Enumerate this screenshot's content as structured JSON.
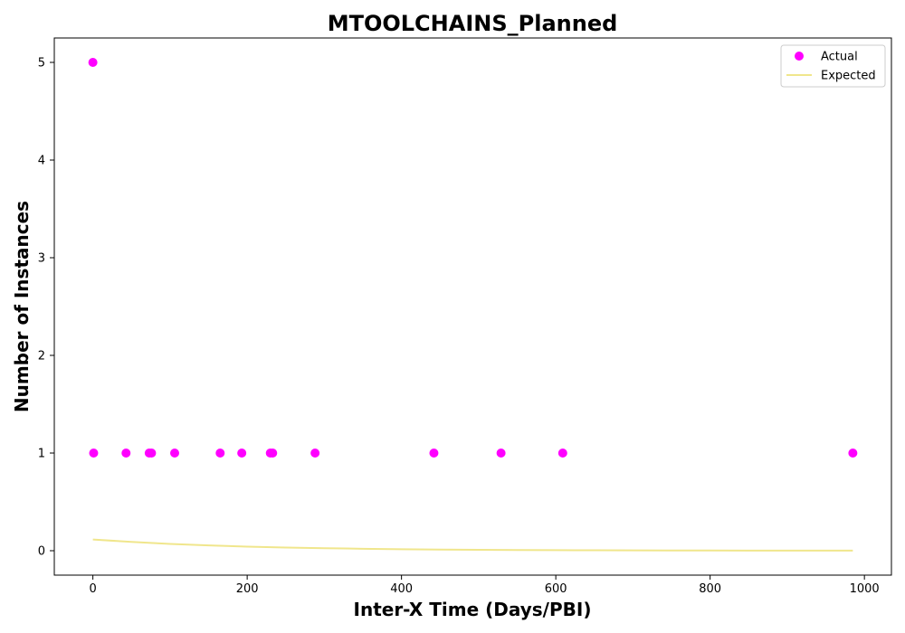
{
  "chart_data": {
    "type": "scatter",
    "title": "MTOOLCHAINS_Planned",
    "xlabel": "Inter-X Time (Days/PBI)",
    "ylabel": "Number of Instances",
    "xlim": [
      -50,
      1035
    ],
    "ylim": [
      -0.25,
      5.25
    ],
    "xticks": [
      0,
      200,
      400,
      600,
      800,
      1000
    ],
    "yticks": [
      0,
      1,
      2,
      3,
      4,
      5
    ],
    "legend_position": "top-right",
    "grid": false,
    "series": [
      {
        "name": "Actual",
        "kind": "scatter",
        "color": "#ff00ff",
        "points": [
          [
            0,
            5
          ],
          [
            1,
            1
          ],
          [
            43,
            1
          ],
          [
            73,
            1
          ],
          [
            76,
            1
          ],
          [
            106,
            1
          ],
          [
            165,
            1
          ],
          [
            193,
            1
          ],
          [
            230,
            1
          ],
          [
            233,
            1
          ],
          [
            288,
            1
          ],
          [
            442,
            1
          ],
          [
            529,
            1
          ],
          [
            609,
            1
          ],
          [
            985,
            1
          ]
        ]
      },
      {
        "name": "Expected",
        "kind": "line",
        "color": "#f0e68c",
        "points": [
          [
            0,
            0.115
          ],
          [
            50,
            0.09
          ],
          [
            100,
            0.07
          ],
          [
            150,
            0.054
          ],
          [
            200,
            0.042
          ],
          [
            250,
            0.033
          ],
          [
            300,
            0.026
          ],
          [
            350,
            0.02
          ],
          [
            400,
            0.015
          ],
          [
            450,
            0.012
          ],
          [
            500,
            0.009
          ],
          [
            550,
            0.007
          ],
          [
            600,
            0.0055
          ],
          [
            650,
            0.0043
          ],
          [
            700,
            0.0033
          ],
          [
            750,
            0.0026
          ],
          [
            800,
            0.002
          ],
          [
            850,
            0.0015
          ],
          [
            900,
            0.0012
          ],
          [
            950,
            0.0009
          ],
          [
            985,
            0.0008
          ]
        ]
      }
    ]
  }
}
